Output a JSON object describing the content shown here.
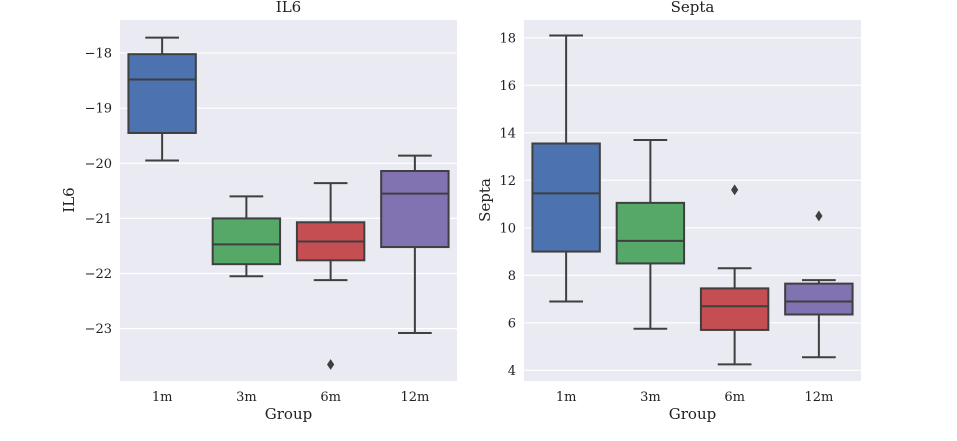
{
  "chart_data": [
    {
      "type": "box",
      "title": "IL6",
      "xlabel": "Group",
      "ylabel": "IL6",
      "categories": [
        "1m",
        "3m",
        "6m",
        "12m"
      ],
      "ylim": [
        -23.95,
        -17.4
      ],
      "yticks": [
        -23,
        -22,
        -21,
        -20,
        -19,
        -18
      ],
      "ytick_labels": [
        "−23",
        "−22",
        "−21",
        "−20",
        "−19",
        "−18"
      ],
      "boxes": [
        {
          "group": "1m",
          "whisker_low": -19.95,
          "q1": -19.45,
          "median": -18.48,
          "q3": -18.02,
          "whisker_high": -17.72,
          "outliers": []
        },
        {
          "group": "3m",
          "whisker_low": -22.05,
          "q1": -21.83,
          "median": -21.47,
          "q3": -21.0,
          "whisker_high": -20.6,
          "outliers": []
        },
        {
          "group": "6m",
          "whisker_low": -22.12,
          "q1": -21.76,
          "median": -21.42,
          "q3": -21.07,
          "whisker_high": -20.36,
          "outliers": [
            -23.65
          ]
        },
        {
          "group": "12m",
          "whisker_low": -23.08,
          "q1": -21.52,
          "median": -20.55,
          "q3": -20.14,
          "whisker_high": -19.86,
          "outliers": []
        }
      ],
      "colors": [
        "#4c72b0",
        "#55a868",
        "#c44e52",
        "#8172b2"
      ]
    },
    {
      "type": "box",
      "title": "Septa",
      "xlabel": "Group",
      "ylabel": "Septa",
      "categories": [
        "1m",
        "3m",
        "6m",
        "12m"
      ],
      "ylim": [
        3.55,
        18.75
      ],
      "yticks": [
        4,
        6,
        8,
        10,
        12,
        14,
        16,
        18
      ],
      "ytick_labels": [
        "4",
        "6",
        "8",
        "10",
        "12",
        "14",
        "16",
        "18"
      ],
      "boxes": [
        {
          "group": "1m",
          "whisker_low": 6.9,
          "q1": 9.0,
          "median": 11.45,
          "q3": 13.55,
          "whisker_high": 18.1,
          "outliers": []
        },
        {
          "group": "3m",
          "whisker_low": 5.75,
          "q1": 8.5,
          "median": 9.45,
          "q3": 11.05,
          "whisker_high": 13.7,
          "outliers": []
        },
        {
          "group": "6m",
          "whisker_low": 4.25,
          "q1": 5.7,
          "median": 6.7,
          "q3": 7.45,
          "whisker_high": 8.3,
          "outliers": [
            11.6
          ]
        },
        {
          "group": "12m",
          "whisker_low": 4.55,
          "q1": 6.35,
          "median": 6.9,
          "q3": 7.65,
          "whisker_high": 7.8,
          "outliers": [
            10.5
          ]
        }
      ],
      "colors": [
        "#4c72b0",
        "#55a868",
        "#c44e52",
        "#8172b2"
      ]
    }
  ]
}
